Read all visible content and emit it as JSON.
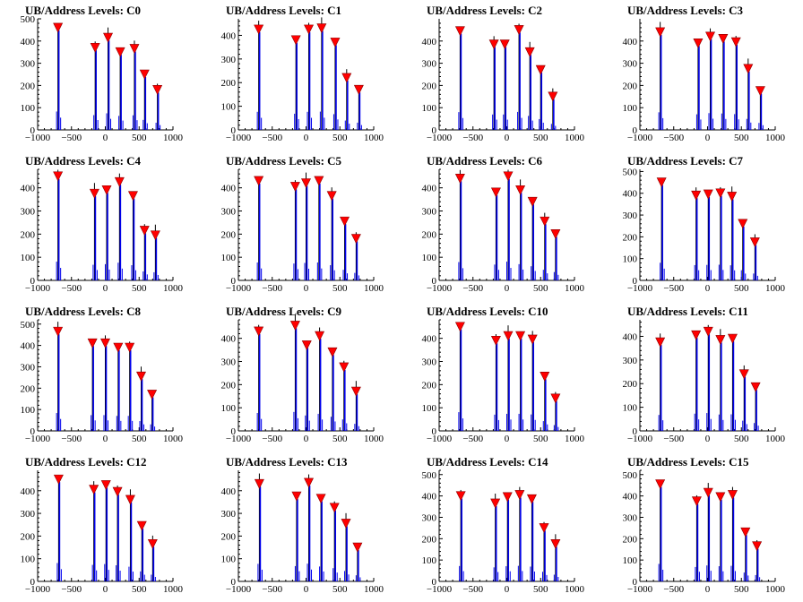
{
  "chart_data": [
    {
      "type": "histogram",
      "title": "UB/Address Levels: C0",
      "xlim": [
        -1000,
        1000
      ],
      "ylim": [
        0,
        500
      ],
      "xticks": [
        -1000,
        -500,
        0,
        500,
        1000
      ],
      "yticks": [
        0,
        100,
        200,
        300,
        400,
        500
      ],
      "peaks": [
        {
          "x": -700,
          "y": 460
        },
        {
          "x": -150,
          "y": 370
        },
        {
          "x": 40,
          "y": 415
        },
        {
          "x": 220,
          "y": 350
        },
        {
          "x": 430,
          "y": 365
        },
        {
          "x": 580,
          "y": 250
        },
        {
          "x": 770,
          "y": 180
        }
      ]
    },
    {
      "type": "histogram",
      "title": "UB/Address Levels: C1",
      "xlim": [
        -1000,
        1000
      ],
      "ylim": [
        0,
        470
      ],
      "xticks": [
        -1000,
        -500,
        0,
        500,
        1000
      ],
      "yticks": [
        0,
        100,
        200,
        300,
        400
      ],
      "peaks": [
        {
          "x": -700,
          "y": 425
        },
        {
          "x": -150,
          "y": 380
        },
        {
          "x": 40,
          "y": 425
        },
        {
          "x": 230,
          "y": 430
        },
        {
          "x": 430,
          "y": 370
        },
        {
          "x": 600,
          "y": 220
        },
        {
          "x": 780,
          "y": 170
        }
      ]
    },
    {
      "type": "histogram",
      "title": "UB/Address Levels: C2",
      "xlim": [
        -1000,
        1000
      ],
      "ylim": [
        0,
        500
      ],
      "xticks": [
        -1000,
        -500,
        0,
        500,
        1000
      ],
      "yticks": [
        0,
        100,
        200,
        300,
        400
      ],
      "peaks": [
        {
          "x": -690,
          "y": 445
        },
        {
          "x": -190,
          "y": 385
        },
        {
          "x": -30,
          "y": 385
        },
        {
          "x": 180,
          "y": 450
        },
        {
          "x": 340,
          "y": 350
        },
        {
          "x": 500,
          "y": 270
        },
        {
          "x": 680,
          "y": 150
        }
      ]
    },
    {
      "type": "histogram",
      "title": "UB/Address Levels: C3",
      "xlim": [
        -1000,
        1000
      ],
      "ylim": [
        0,
        500
      ],
      "xticks": [
        -1000,
        -500,
        0,
        500,
        1000
      ],
      "yticks": [
        0,
        100,
        200,
        300,
        400
      ],
      "peaks": [
        {
          "x": -700,
          "y": 440
        },
        {
          "x": -140,
          "y": 390
        },
        {
          "x": 40,
          "y": 420
        },
        {
          "x": 230,
          "y": 410
        },
        {
          "x": 420,
          "y": 395
        },
        {
          "x": 600,
          "y": 275
        },
        {
          "x": 780,
          "y": 175
        }
      ]
    },
    {
      "type": "histogram",
      "title": "UB/Address Levels: C4",
      "xlim": [
        -1000,
        1000
      ],
      "ylim": [
        0,
        480
      ],
      "xticks": [
        -1000,
        -500,
        0,
        500,
        1000
      ],
      "yticks": [
        0,
        100,
        200,
        300,
        400
      ],
      "peaks": [
        {
          "x": -700,
          "y": 450
        },
        {
          "x": -160,
          "y": 375
        },
        {
          "x": 20,
          "y": 390
        },
        {
          "x": 210,
          "y": 425
        },
        {
          "x": 410,
          "y": 365
        },
        {
          "x": 580,
          "y": 215
        },
        {
          "x": 740,
          "y": 195
        }
      ]
    },
    {
      "type": "histogram",
      "title": "UB/Address Levels: C5",
      "xlim": [
        -1000,
        1000
      ],
      "ylim": [
        0,
        480
      ],
      "xticks": [
        -1000,
        -500,
        0,
        500,
        1000
      ],
      "yticks": [
        0,
        100,
        200,
        300,
        400
      ],
      "peaks": [
        {
          "x": -700,
          "y": 430
        },
        {
          "x": -160,
          "y": 405
        },
        {
          "x": 0,
          "y": 420
        },
        {
          "x": 190,
          "y": 430
        },
        {
          "x": 380,
          "y": 365
        },
        {
          "x": 570,
          "y": 255
        },
        {
          "x": 740,
          "y": 180
        }
      ]
    },
    {
      "type": "histogram",
      "title": "UB/Address Levels: C6",
      "xlim": [
        -1000,
        1000
      ],
      "ylim": [
        0,
        480
      ],
      "xticks": [
        -1000,
        -500,
        0,
        500,
        1000
      ],
      "yticks": [
        0,
        100,
        200,
        300,
        400
      ],
      "peaks": [
        {
          "x": -690,
          "y": 440
        },
        {
          "x": -160,
          "y": 380
        },
        {
          "x": 20,
          "y": 450
        },
        {
          "x": 200,
          "y": 390
        },
        {
          "x": 380,
          "y": 340
        },
        {
          "x": 560,
          "y": 255
        },
        {
          "x": 720,
          "y": 200
        }
      ]
    },
    {
      "type": "histogram",
      "title": "UB/Address Levels: C7",
      "xlim": [
        -1000,
        1000
      ],
      "ylim": [
        0,
        510
      ],
      "xticks": [
        -1000,
        -500,
        0,
        500,
        1000
      ],
      "yticks": [
        0,
        100,
        200,
        300,
        400,
        500
      ],
      "peaks": [
        {
          "x": -680,
          "y": 450
        },
        {
          "x": -170,
          "y": 390
        },
        {
          "x": 10,
          "y": 395
        },
        {
          "x": 190,
          "y": 400
        },
        {
          "x": 360,
          "y": 385
        },
        {
          "x": 520,
          "y": 260
        },
        {
          "x": 700,
          "y": 175
        }
      ]
    },
    {
      "type": "histogram",
      "title": "UB/Address Levels: C8",
      "xlim": [
        -1000,
        1000
      ],
      "ylim": [
        0,
        520
      ],
      "xticks": [
        -1000,
        -500,
        0,
        500,
        1000
      ],
      "yticks": [
        0,
        100,
        200,
        300,
        400,
        500
      ],
      "peaks": [
        {
          "x": -700,
          "y": 465
        },
        {
          "x": -190,
          "y": 410
        },
        {
          "x": 0,
          "y": 410
        },
        {
          "x": 190,
          "y": 390
        },
        {
          "x": 360,
          "y": 390
        },
        {
          "x": 530,
          "y": 255
        },
        {
          "x": 690,
          "y": 170
        }
      ]
    },
    {
      "type": "histogram",
      "title": "UB/Address Levels: C9",
      "xlim": [
        -1000,
        1000
      ],
      "ylim": [
        0,
        480
      ],
      "xticks": [
        -1000,
        -500,
        0,
        500,
        1000
      ],
      "yticks": [
        0,
        100,
        200,
        300,
        400
      ],
      "peaks": [
        {
          "x": -700,
          "y": 430
        },
        {
          "x": -160,
          "y": 455
        },
        {
          "x": 10,
          "y": 370
        },
        {
          "x": 200,
          "y": 410
        },
        {
          "x": 390,
          "y": 340
        },
        {
          "x": 560,
          "y": 275
        },
        {
          "x": 740,
          "y": 170
        }
      ]
    },
    {
      "type": "histogram",
      "title": "UB/Address Levels: C10",
      "xlim": [
        -1000,
        1000
      ],
      "ylim": [
        0,
        480
      ],
      "xticks": [
        -1000,
        -500,
        0,
        500,
        1000
      ],
      "yticks": [
        0,
        100,
        200,
        300,
        400
      ],
      "peaks": [
        {
          "x": -690,
          "y": 450
        },
        {
          "x": -160,
          "y": 390
        },
        {
          "x": 20,
          "y": 410
        },
        {
          "x": 200,
          "y": 410
        },
        {
          "x": 380,
          "y": 395
        },
        {
          "x": 560,
          "y": 235
        },
        {
          "x": 720,
          "y": 140
        }
      ]
    },
    {
      "type": "histogram",
      "title": "UB/Address Levels: C11",
      "xlim": [
        -1000,
        1000
      ],
      "ylim": [
        0,
        470
      ],
      "xticks": [
        -1000,
        -500,
        0,
        500,
        1000
      ],
      "yticks": [
        0,
        100,
        200,
        300,
        400
      ],
      "peaks": [
        {
          "x": -700,
          "y": 375
        },
        {
          "x": -170,
          "y": 405
        },
        {
          "x": 10,
          "y": 420
        },
        {
          "x": 190,
          "y": 385
        },
        {
          "x": 370,
          "y": 390
        },
        {
          "x": 540,
          "y": 240
        },
        {
          "x": 710,
          "y": 185
        }
      ]
    },
    {
      "type": "histogram",
      "title": "UB/Address Levels: C12",
      "xlim": [
        -1000,
        1000
      ],
      "ylim": [
        0,
        490
      ],
      "xticks": [
        -1000,
        -500,
        0,
        500,
        1000
      ],
      "yticks": [
        0,
        100,
        200,
        300,
        400
      ],
      "peaks": [
        {
          "x": -690,
          "y": 450
        },
        {
          "x": -170,
          "y": 405
        },
        {
          "x": 10,
          "y": 425
        },
        {
          "x": 180,
          "y": 395
        },
        {
          "x": 370,
          "y": 360
        },
        {
          "x": 540,
          "y": 245
        },
        {
          "x": 700,
          "y": 165
        }
      ]
    },
    {
      "type": "histogram",
      "title": "UB/Address Levels: C13",
      "xlim": [
        -1000,
        1000
      ],
      "ylim": [
        0,
        490
      ],
      "xticks": [
        -1000,
        -500,
        0,
        500,
        1000
      ],
      "yticks": [
        0,
        100,
        200,
        300,
        400
      ],
      "peaks": [
        {
          "x": -690,
          "y": 430
        },
        {
          "x": -140,
          "y": 375
        },
        {
          "x": 40,
          "y": 435
        },
        {
          "x": 220,
          "y": 365
        },
        {
          "x": 420,
          "y": 325
        },
        {
          "x": 590,
          "y": 255
        },
        {
          "x": 760,
          "y": 150
        }
      ]
    },
    {
      "type": "histogram",
      "title": "UB/Address Levels: C14",
      "xlim": [
        -1000,
        1000
      ],
      "ylim": [
        0,
        520
      ],
      "xticks": [
        -1000,
        -500,
        0,
        500,
        1000
      ],
      "yticks": [
        0,
        100,
        200,
        300,
        400,
        500
      ],
      "peaks": [
        {
          "x": -680,
          "y": 400
        },
        {
          "x": -170,
          "y": 365
        },
        {
          "x": 10,
          "y": 395
        },
        {
          "x": 190,
          "y": 405
        },
        {
          "x": 370,
          "y": 385
        },
        {
          "x": 550,
          "y": 250
        },
        {
          "x": 720,
          "y": 175
        }
      ]
    },
    {
      "type": "histogram",
      "title": "UB/Address Levels: C15",
      "xlim": [
        -1000,
        1000
      ],
      "ylim": [
        0,
        520
      ],
      "xticks": [
        -1000,
        -500,
        0,
        500,
        1000
      ],
      "yticks": [
        0,
        100,
        200,
        300,
        400,
        500
      ],
      "peaks": [
        {
          "x": -700,
          "y": 455
        },
        {
          "x": -160,
          "y": 375
        },
        {
          "x": 10,
          "y": 415
        },
        {
          "x": 190,
          "y": 395
        },
        {
          "x": 370,
          "y": 405
        },
        {
          "x": 560,
          "y": 230
        },
        {
          "x": 730,
          "y": 165
        }
      ]
    }
  ],
  "colors": {
    "histogram": "#0000ee",
    "error_bar": "#000000",
    "marker": "#ff0000",
    "axis": "#000000"
  }
}
